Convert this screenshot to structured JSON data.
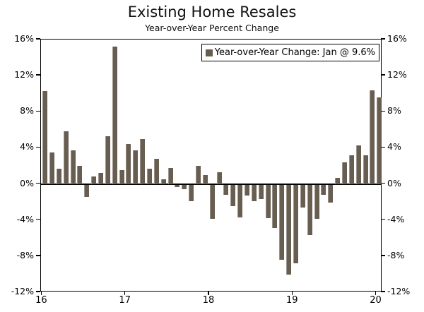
{
  "header": {
    "title": "Existing Home Resales",
    "subtitle": "Year-over-Year Percent Change"
  },
  "legend": {
    "label": "Year-over-Year Change: Jan @ 9.6%",
    "marker_color": "#685d51"
  },
  "chart_data": {
    "type": "bar",
    "title": "Existing Home Resales",
    "subtitle": "Year-over-Year Percent Change",
    "frequency": "monthly",
    "x_start": "Jan 2016",
    "x_end": "Jan 2020",
    "values": [
      10.3,
      3.5,
      1.7,
      5.8,
      3.7,
      2.0,
      -1.4,
      0.8,
      1.2,
      5.3,
      15.2,
      1.5,
      4.4,
      3.7,
      5.0,
      1.7,
      2.8,
      0.5,
      1.8,
      -0.3,
      -0.5,
      -1.8,
      2.0,
      1.0,
      -3.8,
      1.3,
      -1.1,
      -2.4,
      -3.6,
      -1.2,
      -1.8,
      -1.6,
      -3.7,
      -4.8,
      -8.3,
      -10.0,
      -8.7,
      -2.5,
      -5.6,
      -3.8,
      -1.1,
      -2.0,
      0.7,
      2.4,
      3.2,
      4.3,
      3.2,
      10.4,
      9.6
    ],
    "highlight_value": {
      "label": "Jan",
      "value": 9.6
    },
    "x_tick_labels": [
      "16",
      "17",
      "18",
      "19",
      "20"
    ],
    "x_tick_month_indices": [
      0,
      12,
      24,
      36,
      48
    ],
    "y_ticks": [
      16,
      12,
      8,
      4,
      0,
      -4,
      -8,
      -12
    ],
    "y_tick_labels": [
      "16%",
      "12%",
      "8%",
      "4%",
      "0%",
      "-4%",
      "-8%",
      "-12%"
    ],
    "ylim": [
      -12,
      16
    ],
    "grid": false,
    "bar_color": "#685d51",
    "legend_entry": "Year-over-Year Change: Jan @ 9.6%",
    "legend_position": "top-right",
    "y_axis_sides": "both"
  }
}
